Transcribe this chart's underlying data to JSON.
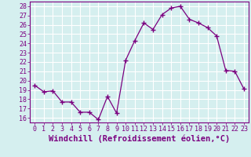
{
  "x": [
    0,
    1,
    2,
    3,
    4,
    5,
    6,
    7,
    8,
    9,
    10,
    11,
    12,
    13,
    14,
    15,
    16,
    17,
    18,
    19,
    20,
    21,
    22,
    23
  ],
  "y": [
    19.5,
    18.8,
    18.9,
    17.7,
    17.7,
    16.6,
    16.6,
    15.8,
    18.3,
    16.5,
    22.2,
    24.3,
    26.2,
    25.5,
    27.1,
    27.8,
    28.0,
    26.6,
    26.2,
    25.7,
    24.8,
    21.1,
    21.0,
    19.1
  ],
  "line_color": "#7b0080",
  "marker": "+",
  "marker_size": 4,
  "xlabel": "Windchill (Refroidissement éolien,°C)",
  "ylabel": "",
  "title": "",
  "xlim": [
    -0.5,
    23.5
  ],
  "ylim": [
    15.5,
    28.5
  ],
  "yticks": [
    16,
    17,
    18,
    19,
    20,
    21,
    22,
    23,
    24,
    25,
    26,
    27,
    28
  ],
  "xticks": [
    0,
    1,
    2,
    3,
    4,
    5,
    6,
    7,
    8,
    9,
    10,
    11,
    12,
    13,
    14,
    15,
    16,
    17,
    18,
    19,
    20,
    21,
    22,
    23
  ],
  "bg_color": "#d5efef",
  "grid_color": "#ffffff",
  "tick_label_fontsize": 6,
  "xlabel_fontsize": 7.5
}
